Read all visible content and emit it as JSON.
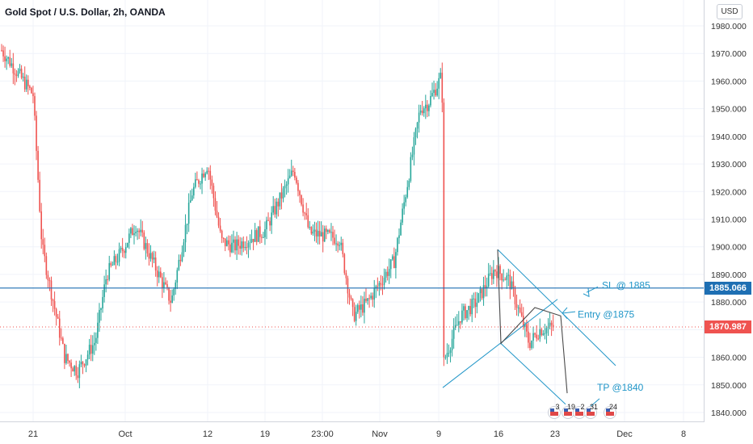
{
  "header": {
    "title": "Gold Spot / U.S. Dollar, 2h, OANDA",
    "currency_button": "USD"
  },
  "colors": {
    "up": "#26a69a",
    "down": "#ef5350",
    "annotation_blue": "#2196c8",
    "sl_line": "#1e6fb3",
    "current_price": "#ef5350"
  },
  "price_badges": {
    "sl_label": "1885.066",
    "last_label": "1870.987"
  },
  "annotations": {
    "sl": "SL @ 1885",
    "entry": "Entry @1875",
    "tp": "TP @1840"
  },
  "event_markers": [
    "3",
    "19",
    "2",
    "31",
    "24"
  ],
  "chart_data": {
    "type": "candlestick",
    "title": "Gold Spot / U.S. Dollar, 2h, OANDA",
    "y_axis_currency": "USD",
    "ylim": [
      1836,
      1990
    ],
    "y_ticks": [
      "1980.000",
      "1970.000",
      "1960.000",
      "1950.000",
      "1940.000",
      "1930.000",
      "1920.000",
      "1910.000",
      "1900.000",
      "1890.000",
      "1880.000",
      "1870.000",
      "1860.000",
      "1850.000",
      "1840.000"
    ],
    "x_ticks": [
      "21",
      "Oct",
      "12",
      "19",
      "23:00",
      "Nov",
      "9",
      "16",
      "23",
      "Dec",
      "8"
    ],
    "horizontal_lines": [
      {
        "label": "SL @ 1885",
        "value": 1885.066,
        "style": "solid"
      },
      {
        "label": "current price",
        "value": 1870.987,
        "style": "dotted"
      }
    ],
    "approx_close_path": [
      {
        "t": "Sep 18",
        "price": 1972
      },
      {
        "t": "Sep 21",
        "price": 1955
      },
      {
        "t": "Sep 22",
        "price": 1900
      },
      {
        "t": "Sep 24",
        "price": 1860
      },
      {
        "t": "Sep 25",
        "price": 1855
      },
      {
        "t": "Sep 28",
        "price": 1866
      },
      {
        "t": "Sep 30",
        "price": 1890
      },
      {
        "t": "Oct 2",
        "price": 1898
      },
      {
        "t": "Oct 5",
        "price": 1908
      },
      {
        "t": "Oct 7",
        "price": 1880
      },
      {
        "t": "Oct 9",
        "price": 1920
      },
      {
        "t": "Oct 12",
        "price": 1930
      },
      {
        "t": "Oct 14",
        "price": 1902
      },
      {
        "t": "Oct 16",
        "price": 1900
      },
      {
        "t": "Oct 19",
        "price": 1906
      },
      {
        "t": "Oct 21",
        "price": 1928
      },
      {
        "t": "Oct 23",
        "price": 1905
      },
      {
        "t": "Oct 26",
        "price": 1903
      },
      {
        "t": "Oct 28",
        "price": 1875
      },
      {
        "t": "Oct 30",
        "price": 1880
      },
      {
        "t": "Nov 3",
        "price": 1895
      },
      {
        "t": "Nov 5",
        "price": 1950
      },
      {
        "t": "Nov 6",
        "price": 1952
      },
      {
        "t": "Nov 9",
        "price": 1962
      },
      {
        "t": "Nov 9",
        "price": 1860
      },
      {
        "t": "Nov 11",
        "price": 1875
      },
      {
        "t": "Nov 13",
        "price": 1880
      },
      {
        "t": "Nov 16",
        "price": 1892
      },
      {
        "t": "Nov 17",
        "price": 1888
      },
      {
        "t": "Nov 19",
        "price": 1865
      },
      {
        "t": "Nov 20",
        "price": 1870
      },
      {
        "t": "Nov 22",
        "price": 1871
      }
    ],
    "annotations": [
      {
        "label": "SL @ 1885",
        "price": 1885
      },
      {
        "label": "Entry @1875",
        "price": 1875
      },
      {
        "label": "TP @1840",
        "price": 1840
      }
    ]
  }
}
